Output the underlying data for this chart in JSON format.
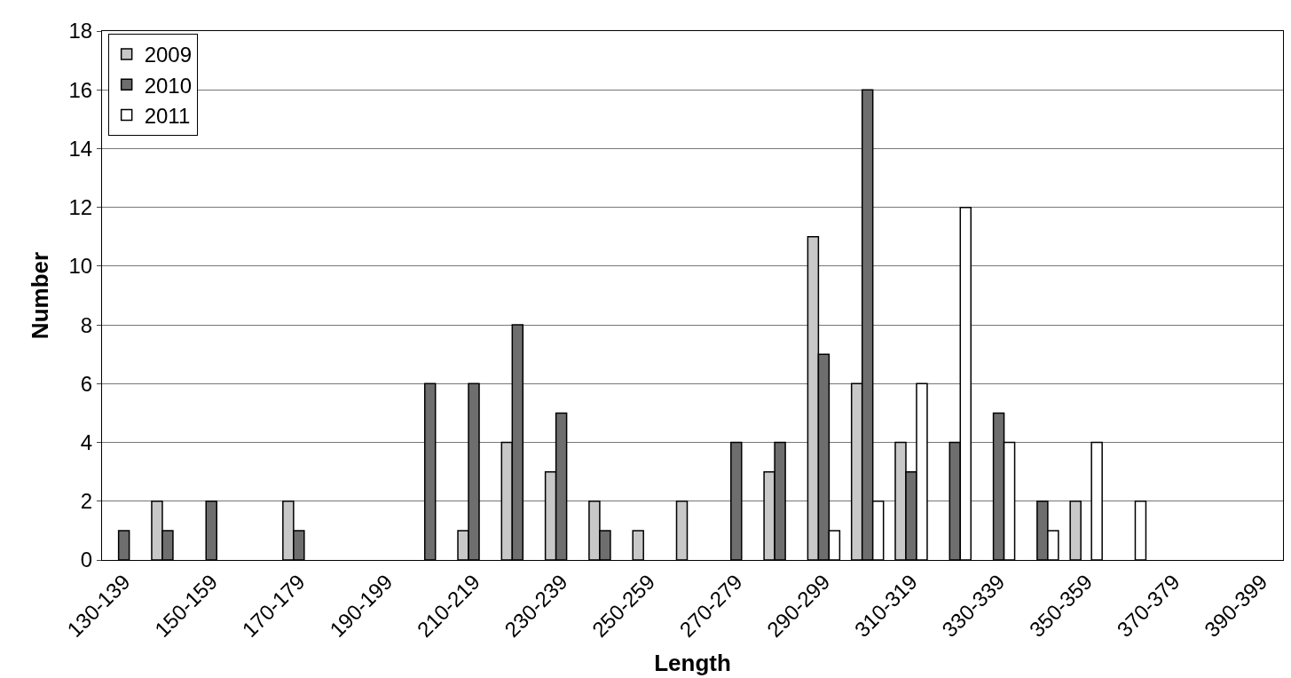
{
  "chart_data": {
    "type": "bar",
    "xlabel": "Length",
    "ylabel": "Number",
    "categories": [
      "130-139",
      null,
      "150-159",
      null,
      "170-179",
      null,
      "190-199",
      null,
      "210-219",
      null,
      "230-239",
      null,
      "250-259",
      null,
      "270-279",
      null,
      "290-299",
      null,
      "310-319",
      null,
      "330-339",
      null,
      "350-359",
      null,
      "370-379",
      null,
      "390-399"
    ],
    "series": [
      {
        "name": "2009",
        "color": "#c8c8c8",
        "values": [
          null,
          2,
          null,
          null,
          2,
          null,
          null,
          null,
          1,
          4,
          3,
          2,
          1,
          2,
          null,
          3,
          11,
          6,
          4,
          null,
          null,
          null,
          2,
          null,
          null,
          null,
          null
        ]
      },
      {
        "name": "2010",
        "color": "#6e6e6e",
        "values": [
          1,
          1,
          2,
          null,
          1,
          null,
          null,
          6,
          6,
          8,
          5,
          1,
          null,
          null,
          4,
          4,
          7,
          16,
          3,
          4,
          5,
          2,
          null,
          null,
          null,
          null,
          null
        ]
      },
      {
        "name": "2011",
        "color": "#ffffff",
        "values": [
          null,
          null,
          null,
          null,
          null,
          null,
          null,
          null,
          null,
          null,
          null,
          null,
          null,
          null,
          null,
          null,
          1,
          2,
          6,
          12,
          4,
          1,
          4,
          2,
          null,
          null,
          null
        ]
      }
    ],
    "ylim": [
      0,
      18
    ],
    "yticks": [
      0,
      2,
      4,
      6,
      8,
      10,
      12,
      14,
      16,
      18
    ],
    "grid": "y",
    "legend": "top left"
  }
}
